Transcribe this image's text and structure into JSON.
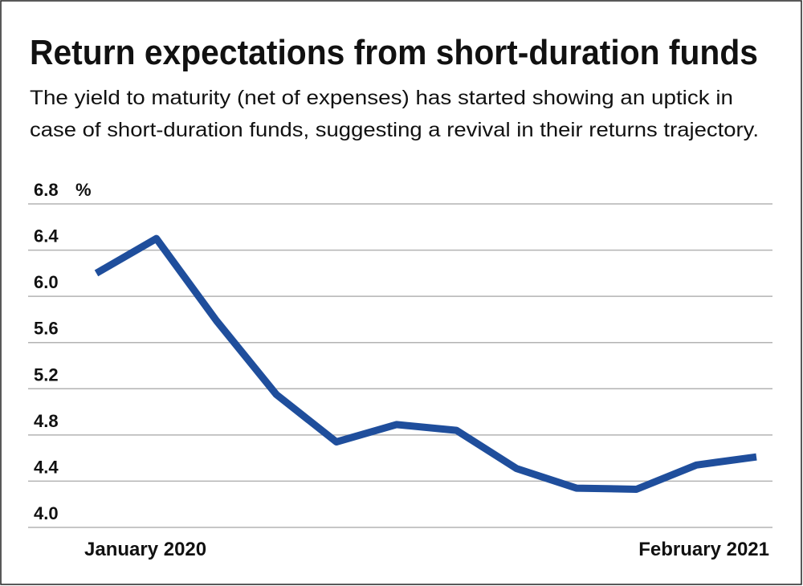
{
  "chart_data": {
    "type": "line",
    "title": "Return expectations from short-duration funds",
    "subtitle": [
      "The yield to maturity (net of expenses) has started showing an uptick in",
      "case of short-duration funds, suggesting a revival in their returns trajectory."
    ],
    "y_unit": "%",
    "categories": [
      "January 2020",
      null,
      null,
      null,
      null,
      null,
      null,
      null,
      null,
      null,
      null,
      "February 2021"
    ],
    "series": [
      {
        "name": "Yield to maturity",
        "color": "#1f4e9c",
        "values": [
          6.2,
          6.5,
          5.79,
          5.15,
          4.74,
          4.89,
          4.84,
          4.51,
          4.34,
          4.33,
          4.54,
          4.61
        ]
      }
    ],
    "ylim": [
      4.0,
      6.8
    ],
    "yticks": [
      {
        "value": 4.0,
        "label": "4.0"
      },
      4.4,
      4.8,
      5.2,
      5.6,
      {
        "value": 6.0,
        "label": "6.0"
      },
      6.4,
      6.8
    ],
    "grid": true
  }
}
